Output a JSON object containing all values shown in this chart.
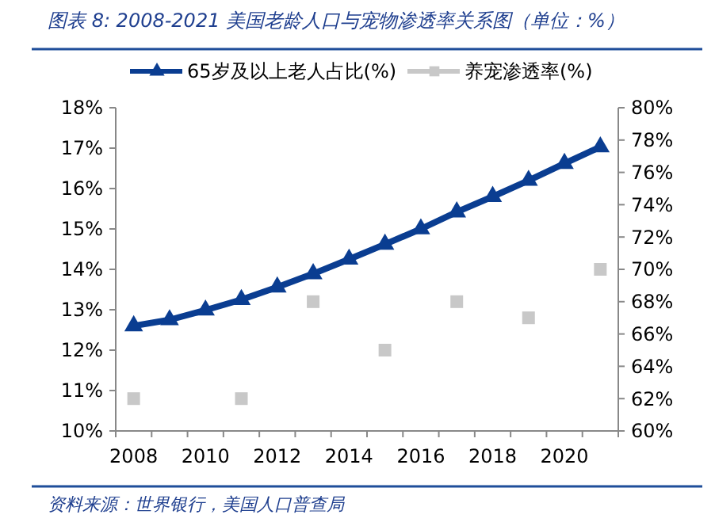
{
  "chart_data": {
    "type": "line",
    "title": "图表 8: 2008-2021 美国老龄人口与宠物渗透率关系图（单位：%）",
    "categories": [
      "2008",
      null,
      "2010",
      null,
      "2012",
      null,
      "2014",
      null,
      "2016",
      null,
      "2018",
      null,
      "2020",
      null
    ],
    "series": [
      {
        "name": "65岁及以上老人占比(%)",
        "color": "#0a3d91",
        "marker": "triangle",
        "values": [
          12.6,
          12.75,
          12.99,
          13.25,
          13.56,
          13.89,
          14.25,
          14.62,
          15.0,
          15.42,
          15.8,
          16.2,
          16.62,
          17.03
        ]
      },
      {
        "name": "养宠渗透率(%)",
        "color": "#c8c8c8",
        "type": "scatter",
        "marker": "square",
        "axis": "y2",
        "values": [
          62,
          null,
          null,
          62,
          null,
          68,
          null,
          65,
          null,
          68,
          null,
          67,
          null,
          70
        ]
      }
    ],
    "ylim": [
      10,
      18
    ],
    "yticks": [
      {
        "value": 10,
        "label": "10%"
      },
      {
        "value": 11,
        "label": "11%"
      },
      {
        "value": 12,
        "label": "12%"
      },
      {
        "value": 13,
        "label": "13%"
      },
      {
        "value": 14,
        "label": "14%"
      },
      {
        "value": 15,
        "label": "15%"
      },
      {
        "value": 16,
        "label": "16%"
      },
      {
        "value": 17,
        "label": "17%"
      },
      {
        "value": 18,
        "label": "18%"
      }
    ],
    "y2lim": [
      60,
      80
    ],
    "y2ticks": [
      {
        "value": 60,
        "label": "60%"
      },
      {
        "value": 62,
        "label": "62%"
      },
      {
        "value": 64,
        "label": "64%"
      },
      {
        "value": 66,
        "label": "66%"
      },
      {
        "value": 68,
        "label": "68%"
      },
      {
        "value": 70,
        "label": "70%"
      },
      {
        "value": 72,
        "label": "72%"
      },
      {
        "value": 74,
        "label": "74%"
      },
      {
        "value": 76,
        "label": "76%"
      },
      {
        "value": 78,
        "label": "78%"
      },
      {
        "value": 80,
        "label": "80%"
      }
    ],
    "legend": "top",
    "grid": false,
    "annotations": [
      "资料来源：世界银行，美国人口普查局"
    ]
  }
}
